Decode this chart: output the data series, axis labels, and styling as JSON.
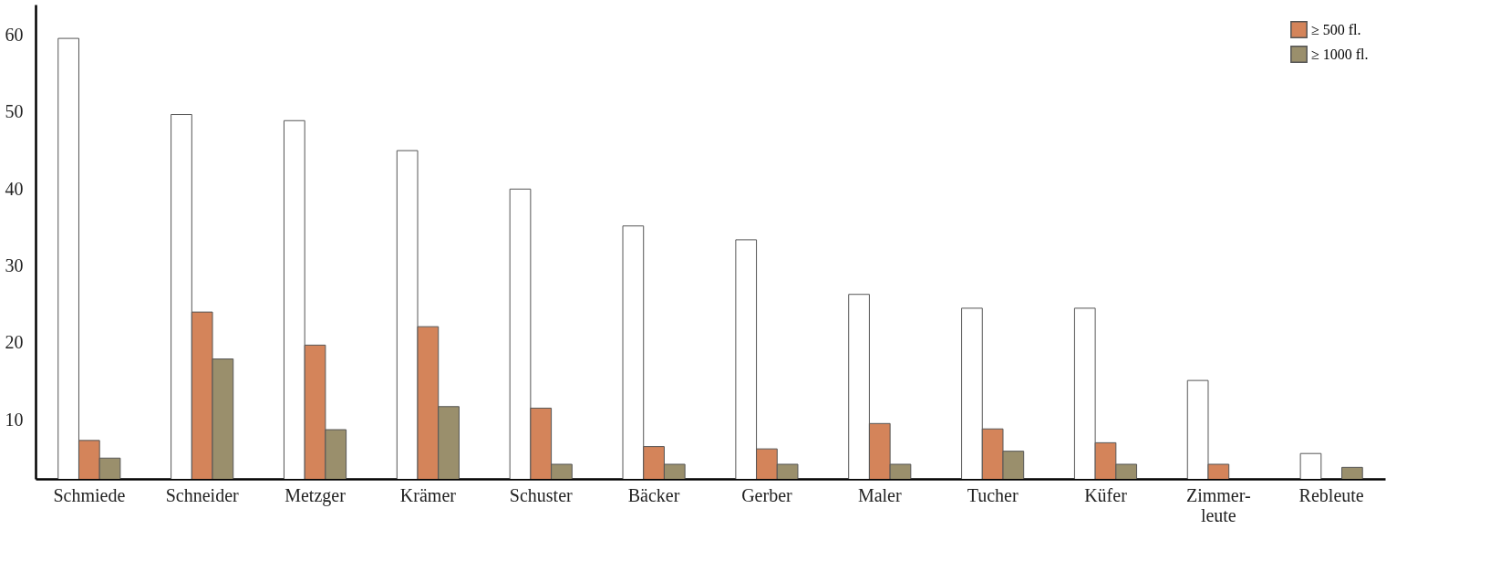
{
  "chart_data": {
    "type": "bar",
    "categories": [
      "Schmiede",
      "Schneider",
      "Metzger",
      "Krämer",
      "Schuster",
      "Bäcker",
      "Gerber",
      "Maler",
      "Tucher",
      "Küfer",
      "Zimmer-\nleute",
      "Rebleute"
    ],
    "series": [
      {
        "color": "#ffffff",
        "values": [
          59.6,
          49.7,
          48.9,
          45,
          40,
          35.2,
          33.4,
          26.3,
          24.5,
          24.5,
          15.1,
          5.6
        ]
      },
      {
        "name": "≥ 500 fl.",
        "color": "#d4845a",
        "values": [
          7.3,
          24,
          19.7,
          22.1,
          11.5,
          6.5,
          6.2,
          9.5,
          8.8,
          7.0,
          4.2,
          null
        ]
      },
      {
        "name": "≥ 1000 fl.",
        "color": "#9a8f6c",
        "values": [
          5.0,
          17.9,
          8.7,
          11.7,
          4.2,
          4.2,
          4.2,
          4.2,
          5.9,
          4.2,
          null,
          3.8
        ]
      }
    ],
    "ylim": [
      2.3,
      64
    ],
    "yticks": [
      10,
      20,
      30,
      40,
      50,
      60
    ],
    "grid": false,
    "legend": "top right"
  }
}
